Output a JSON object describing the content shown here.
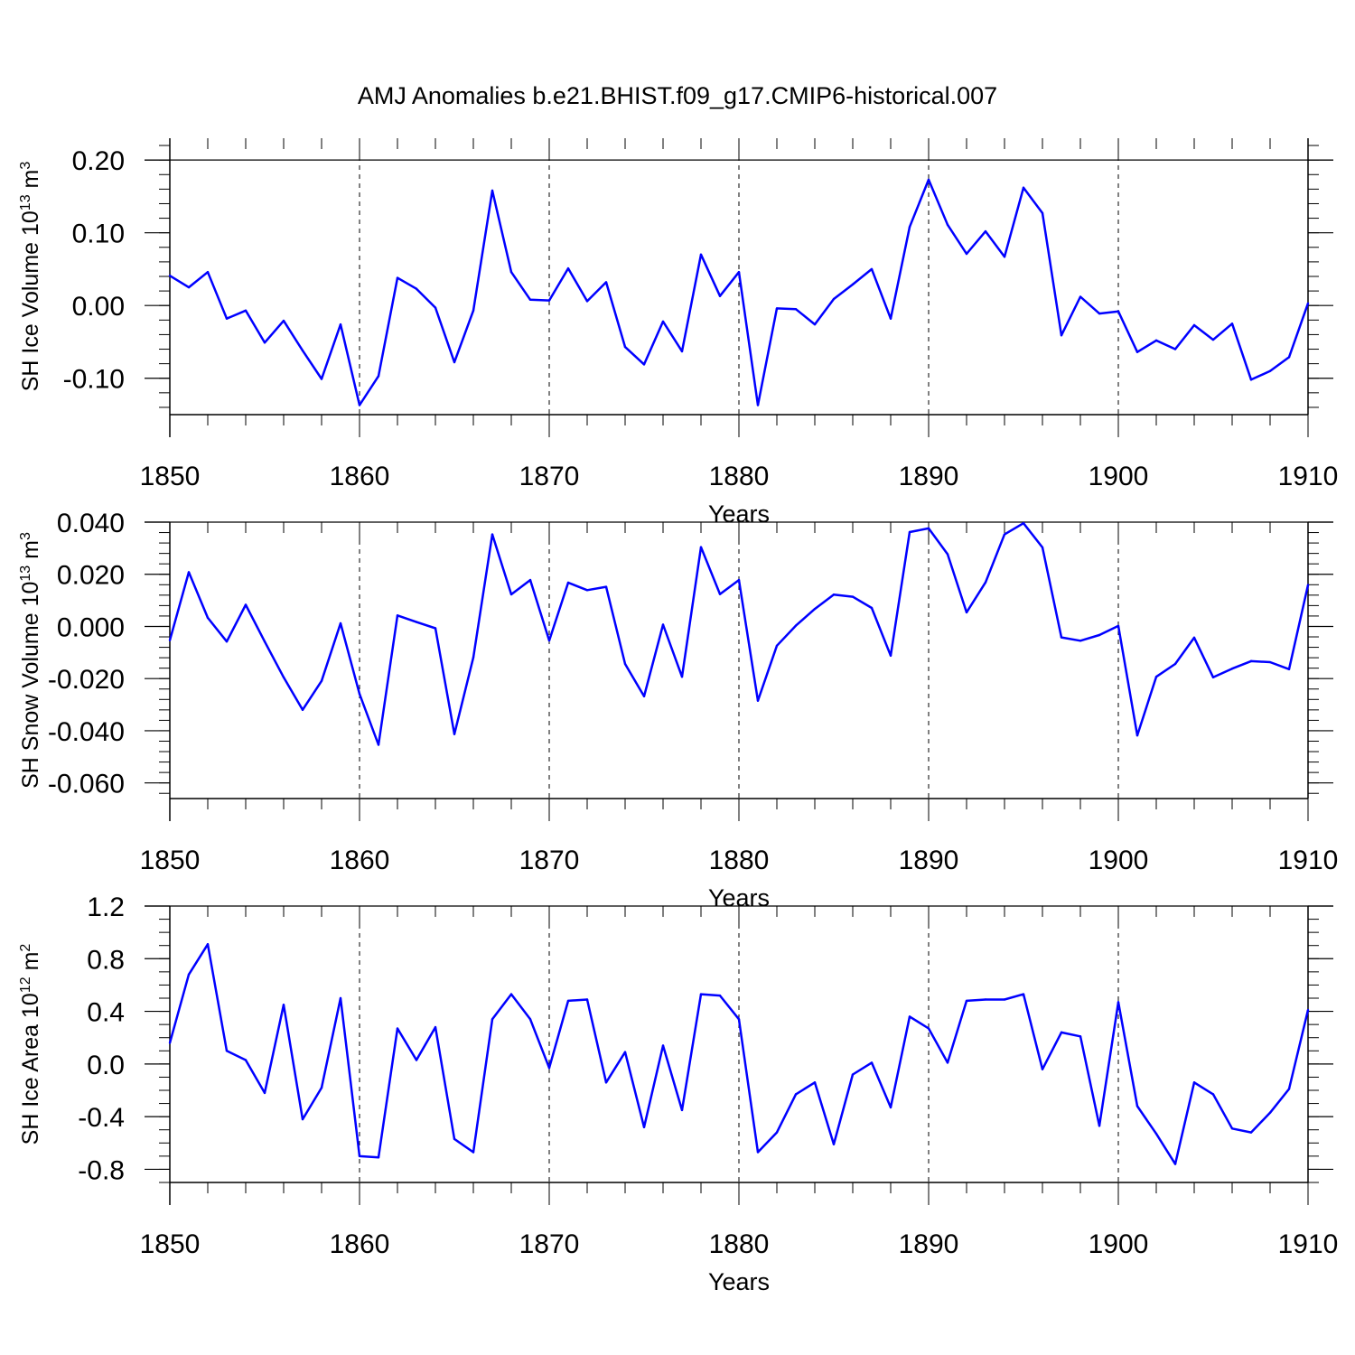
{
  "title": "AMJ Anomalies b.e21.BHIST.f09_g17.CMIP6-historical.007",
  "colors": {
    "line": "#0000ff",
    "axes": "#000000",
    "grid": "#000000"
  },
  "chart_data": [
    {
      "type": "line",
      "ylabel": {
        "text": "SH Ice Volume 10",
        "exp": "13",
        "unit_text": " m",
        "unit_exp": "3"
      },
      "xlabel": "Years",
      "xlim": [
        1850,
        1910
      ],
      "ylim": [
        -0.15,
        0.23
      ],
      "x_ticks": [
        1850,
        1860,
        1870,
        1880,
        1890,
        1900,
        1910
      ],
      "x_tick_labels": [
        "1850",
        "1860",
        "1870",
        "1880",
        "1890",
        "1900",
        "1910"
      ],
      "y_ticks": [
        -0.1,
        0.0,
        0.1,
        0.2
      ],
      "y_tick_labels": [
        "-0.10",
        "0.00",
        "0.10",
        "0.20"
      ],
      "y_minor_step": 0.02,
      "grid_x": [
        1860,
        1870,
        1880,
        1890,
        1900
      ],
      "series": [
        {
          "name": "SH Ice Volume",
          "x": [
            1850,
            1851,
            1852,
            1853,
            1854,
            1855,
            1856,
            1857,
            1858,
            1859,
            1860,
            1861,
            1862,
            1863,
            1864,
            1865,
            1866,
            1867,
            1868,
            1869,
            1870,
            1871,
            1872,
            1873,
            1874,
            1875,
            1876,
            1877,
            1878,
            1879,
            1880,
            1881,
            1882,
            1883,
            1884,
            1885,
            1886,
            1887,
            1888,
            1889,
            1890,
            1891,
            1892,
            1893,
            1894,
            1895,
            1896,
            1897,
            1898,
            1899,
            1900,
            1901,
            1902,
            1903,
            1904,
            1905,
            1906,
            1907,
            1908,
            1909,
            1910
          ],
          "values": [
            0.041,
            0.025,
            0.046,
            -0.018,
            -0.007,
            -0.051,
            -0.021,
            -0.062,
            -0.101,
            -0.026,
            -0.137,
            -0.097,
            0.038,
            0.023,
            -0.003,
            -0.078,
            -0.007,
            0.158,
            0.046,
            0.008,
            0.007,
            0.051,
            0.006,
            0.032,
            -0.057,
            -0.081,
            -0.022,
            -0.063,
            0.07,
            0.013,
            0.046,
            -0.137,
            -0.004,
            -0.005,
            -0.026,
            0.009,
            0.029,
            0.05,
            -0.018,
            0.108,
            0.173,
            0.111,
            0.071,
            0.102,
            0.067,
            0.162,
            0.127,
            -0.041,
            0.012,
            -0.011,
            -0.008,
            -0.064,
            -0.048,
            -0.06,
            -0.027,
            -0.047,
            -0.025,
            -0.102,
            -0.09,
            -0.071,
            0.003
          ]
        }
      ]
    },
    {
      "type": "line",
      "ylabel": {
        "text": "SH Snow Volume 10",
        "exp": "13",
        "unit_text": " m",
        "unit_exp": "3"
      },
      "xlabel": "Years",
      "xlim": [
        1850,
        1910
      ],
      "ylim": [
        -0.066,
        0.04
      ],
      "x_ticks": [
        1850,
        1860,
        1870,
        1880,
        1890,
        1900,
        1910
      ],
      "x_tick_labels": [
        "1850",
        "1860",
        "1870",
        "1880",
        "1890",
        "1900",
        "1910"
      ],
      "y_ticks": [
        -0.06,
        -0.04,
        -0.02,
        0.0,
        0.02,
        0.04
      ],
      "y_tick_labels": [
        "-0.060",
        "-0.040",
        "-0.020",
        "0.000",
        "0.020",
        "0.040"
      ],
      "y_minor_step": 0.004,
      "grid_x": [
        1860,
        1870,
        1880,
        1890,
        1900
      ],
      "series": [
        {
          "name": "SH Snow Volume",
          "x": [
            1850,
            1851,
            1852,
            1853,
            1854,
            1855,
            1856,
            1857,
            1858,
            1859,
            1860,
            1861,
            1862,
            1863,
            1864,
            1865,
            1866,
            1867,
            1868,
            1869,
            1870,
            1871,
            1872,
            1873,
            1874,
            1875,
            1876,
            1877,
            1878,
            1879,
            1880,
            1881,
            1882,
            1883,
            1884,
            1885,
            1886,
            1887,
            1888,
            1889,
            1890,
            1891,
            1892,
            1893,
            1894,
            1895,
            1896,
            1897,
            1898,
            1899,
            1900,
            1901,
            1902,
            1903,
            1904,
            1905,
            1906,
            1907,
            1908,
            1909,
            1910
          ],
          "values": [
            -0.0053,
            0.0208,
            0.0033,
            -0.0058,
            0.0083,
            -0.0058,
            -0.0195,
            -0.032,
            -0.0209,
            0.0012,
            -0.0259,
            -0.0454,
            0.0042,
            0.0017,
            -0.0007,
            -0.0413,
            -0.0119,
            0.0353,
            0.0123,
            0.0178,
            -0.0054,
            0.0168,
            0.0139,
            0.0152,
            -0.0144,
            -0.0268,
            0.0007,
            -0.0193,
            0.0304,
            0.0124,
            0.0178,
            -0.0285,
            -0.0074,
            0.0003,
            0.0067,
            0.0122,
            0.0114,
            0.0071,
            -0.0112,
            0.0362,
            0.0376,
            0.0277,
            0.0054,
            0.0169,
            0.0353,
            0.0396,
            0.0303,
            -0.0042,
            -0.0055,
            -0.0033,
            0.0002,
            -0.0418,
            -0.0193,
            -0.0144,
            -0.0043,
            -0.0195,
            -0.0162,
            -0.0133,
            -0.0137,
            -0.0164,
            0.0159
          ]
        }
      ]
    },
    {
      "type": "line",
      "ylabel": {
        "text": "SH Ice Area 10",
        "exp": "12",
        "unit_text": " m",
        "unit_exp": "2"
      },
      "xlabel": "Years",
      "xlim": [
        1850,
        1910
      ],
      "ylim": [
        -0.9,
        1.2
      ],
      "x_ticks": [
        1850,
        1860,
        1870,
        1880,
        1890,
        1900,
        1910
      ],
      "x_tick_labels": [
        "1850",
        "1860",
        "1870",
        "1880",
        "1890",
        "1900",
        "1910"
      ],
      "y_ticks": [
        -0.8,
        -0.4,
        0.0,
        0.4,
        0.8,
        1.2
      ],
      "y_tick_labels": [
        "-0.8",
        "-0.4",
        "0.0",
        "0.4",
        "0.8",
        "1.2"
      ],
      "y_minor_step": 0.1,
      "grid_x": [
        1860,
        1870,
        1880,
        1890,
        1900
      ],
      "series": [
        {
          "name": "SH Ice Area",
          "x": [
            1850,
            1851,
            1852,
            1853,
            1854,
            1855,
            1856,
            1857,
            1858,
            1859,
            1860,
            1861,
            1862,
            1863,
            1864,
            1865,
            1866,
            1867,
            1868,
            1869,
            1870,
            1871,
            1872,
            1873,
            1874,
            1875,
            1876,
            1877,
            1878,
            1879,
            1880,
            1881,
            1882,
            1883,
            1884,
            1885,
            1886,
            1887,
            1888,
            1889,
            1890,
            1891,
            1892,
            1893,
            1894,
            1895,
            1896,
            1897,
            1898,
            1899,
            1900,
            1901,
            1902,
            1903,
            1904,
            1905,
            1906,
            1907,
            1908,
            1909,
            1910
          ],
          "values": [
            0.16,
            0.68,
            0.91,
            0.1,
            0.03,
            -0.22,
            0.45,
            -0.42,
            -0.18,
            0.5,
            -0.7,
            -0.71,
            0.27,
            0.03,
            0.28,
            -0.57,
            -0.67,
            0.34,
            0.53,
            0.34,
            -0.03,
            0.48,
            0.49,
            -0.14,
            0.09,
            -0.48,
            0.14,
            -0.35,
            0.53,
            0.52,
            0.34,
            -0.67,
            -0.52,
            -0.23,
            -0.14,
            -0.61,
            -0.08,
            0.01,
            -0.33,
            0.36,
            0.27,
            0.01,
            0.48,
            0.49,
            0.49,
            0.53,
            -0.04,
            0.24,
            0.21,
            -0.47,
            0.47,
            -0.32,
            -0.53,
            -0.76,
            -0.14,
            -0.23,
            -0.49,
            -0.52,
            -0.37,
            -0.19,
            0.41
          ]
        }
      ]
    }
  ]
}
